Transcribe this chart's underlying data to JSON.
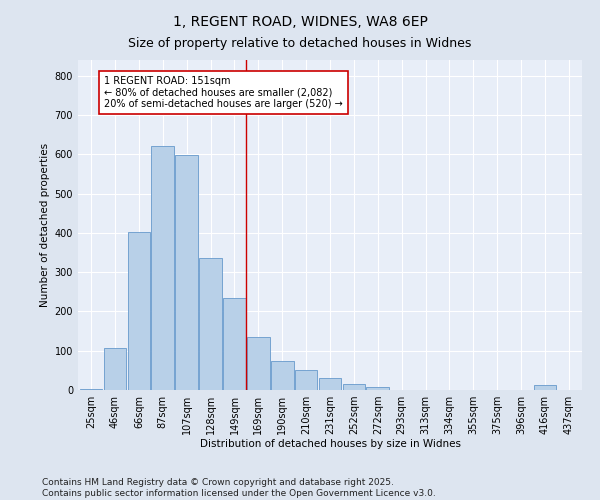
{
  "title": "1, REGENT ROAD, WIDNES, WA8 6EP",
  "subtitle": "Size of property relative to detached houses in Widnes",
  "xlabel": "Distribution of detached houses by size in Widnes",
  "ylabel": "Number of detached properties",
  "categories": [
    "25sqm",
    "46sqm",
    "66sqm",
    "87sqm",
    "107sqm",
    "128sqm",
    "149sqm",
    "169sqm",
    "190sqm",
    "210sqm",
    "231sqm",
    "252sqm",
    "272sqm",
    "293sqm",
    "313sqm",
    "334sqm",
    "355sqm",
    "375sqm",
    "396sqm",
    "416sqm",
    "437sqm"
  ],
  "values": [
    3,
    108,
    403,
    622,
    597,
    335,
    235,
    135,
    75,
    50,
    30,
    15,
    7,
    0,
    0,
    0,
    0,
    0,
    0,
    12,
    0
  ],
  "bar_color": "#b8d0e8",
  "bar_edge_color": "#6699cc",
  "vline_color": "#cc0000",
  "vline_x_index": 6,
  "annotation_text": "1 REGENT ROAD: 151sqm\n← 80% of detached houses are smaller (2,082)\n20% of semi-detached houses are larger (520) →",
  "annotation_box_facecolor": "#ffffff",
  "annotation_box_edgecolor": "#cc0000",
  "ylim": [
    0,
    840
  ],
  "yticks": [
    0,
    100,
    200,
    300,
    400,
    500,
    600,
    700,
    800
  ],
  "background_color": "#dde5f0",
  "plot_bg_color": "#e8eef8",
  "title_fontsize": 10,
  "subtitle_fontsize": 9,
  "axis_fontsize": 7.5,
  "tick_fontsize": 7,
  "footer_text": "Contains HM Land Registry data © Crown copyright and database right 2025.\nContains public sector information licensed under the Open Government Licence v3.0.",
  "footer_fontsize": 6.5
}
